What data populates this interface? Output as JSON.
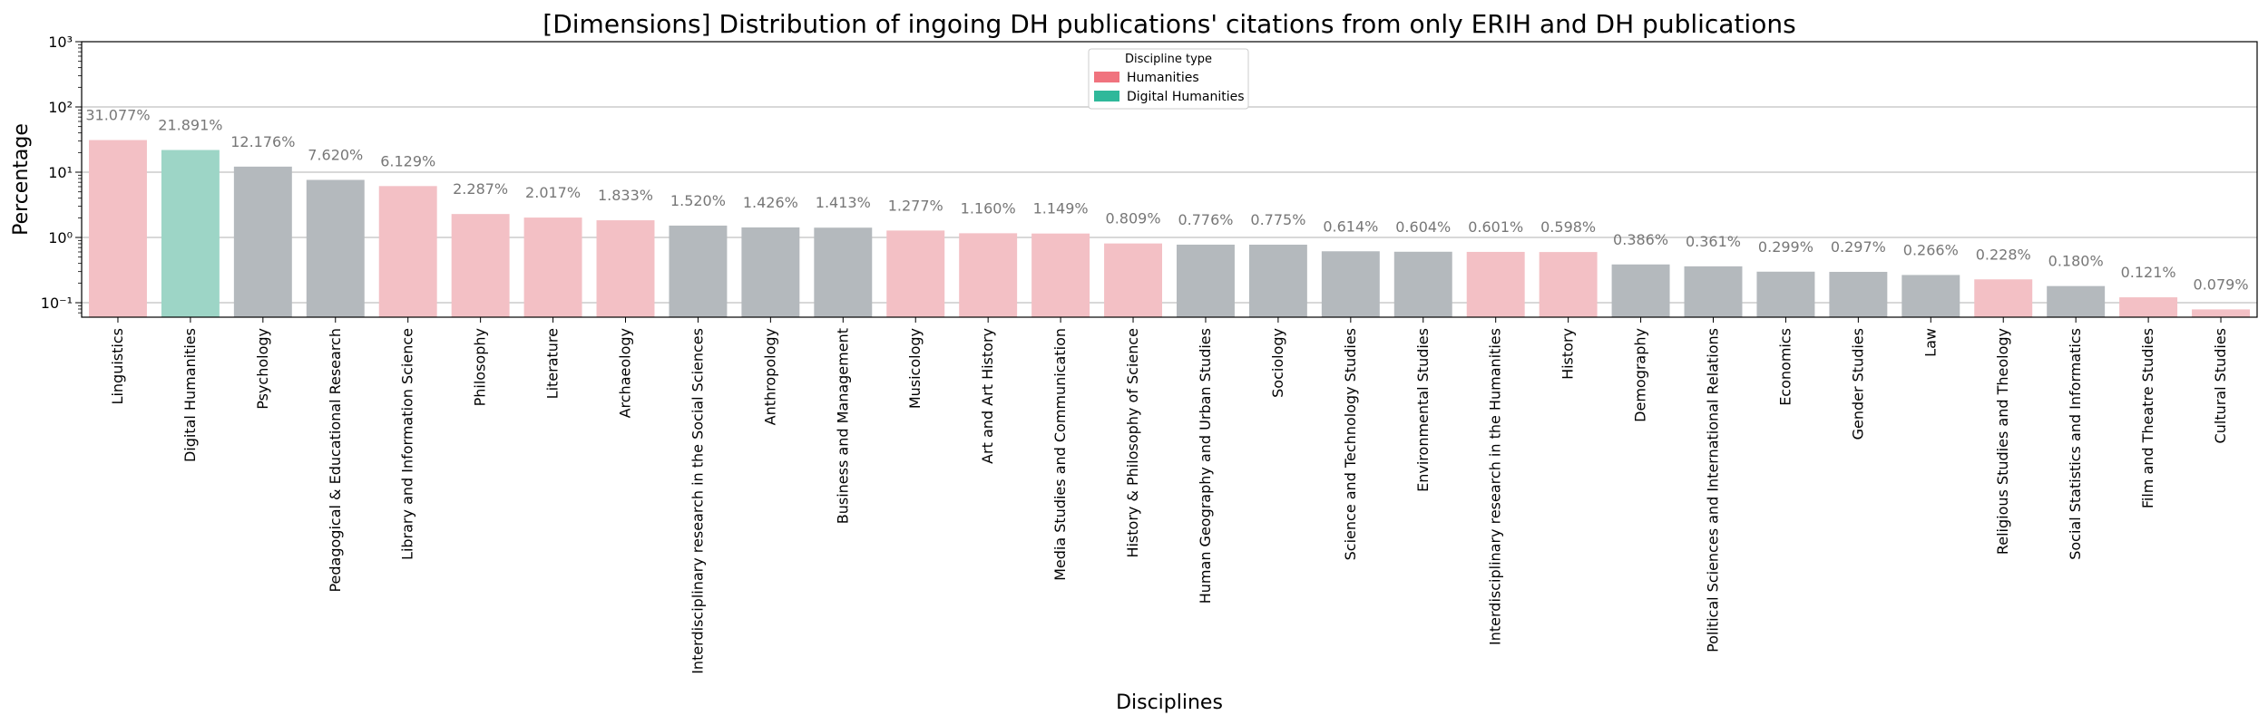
{
  "chart_data": {
    "type": "bar",
    "title": "[Dimensions] Distribution of ingoing DH publications' citations from only ERIH and DH publications",
    "xlabel": "Disciplines",
    "ylabel": "Percentage",
    "yscale": "log",
    "ylim": [
      0.06,
      1000
    ],
    "yticks": [
      0.1,
      1,
      10,
      100,
      1000
    ],
    "ytick_labels": [
      "10⁻¹",
      "10⁰",
      "10¹",
      "10²",
      "10³"
    ],
    "grid": "horizontal",
    "legend": {
      "title": "Discipline type",
      "placement": "top-center",
      "entries": [
        {
          "label": "Humanities",
          "color": "#f0737e"
        },
        {
          "label": "Digital Humanities",
          "color": "#2fb89a"
        }
      ]
    },
    "colors": {
      "Humanities": "#f3c0c5",
      "Digital Humanities": "#9dd5c6",
      "Other": "#b4b9bd"
    },
    "categories": [
      "Linguistics",
      "Digital Humanities",
      "Psychology",
      "Pedagogical & Educational Research",
      "Library and Information Science",
      "Philosophy",
      "Literature",
      "Archaeology",
      "Interdisciplinary research in the Social Sciences",
      "Anthropology",
      "Business and Management",
      "Musicology",
      "Art and Art History",
      "Media Studies and Communication",
      "History & Philosophy of Science",
      "Human Geography and Urban Studies",
      "Sociology",
      "Science and Technology Studies",
      "Environmental Studies",
      "Interdisciplinary research in the Humanities",
      "History",
      "Demography",
      "Political Sciences and International Relations",
      "Economics",
      "Gender Studies",
      "Law",
      "Religious Studies and Theology",
      "Social Statistics and Informatics",
      "Film and Theatre Studies",
      "Cultural Studies"
    ],
    "values": [
      31.077,
      21.891,
      12.176,
      7.62,
      6.129,
      2.287,
      2.017,
      1.833,
      1.52,
      1.426,
      1.413,
      1.277,
      1.16,
      1.149,
      0.809,
      0.776,
      0.775,
      0.614,
      0.604,
      0.601,
      0.598,
      0.386,
      0.361,
      0.299,
      0.297,
      0.266,
      0.228,
      0.18,
      0.121,
      0.079
    ],
    "value_labels": [
      "31.077%",
      "21.891%",
      "12.176%",
      "7.620%",
      "6.129%",
      "2.287%",
      "2.017%",
      "1.833%",
      "1.520%",
      "1.426%",
      "1.413%",
      "1.277%",
      "1.160%",
      "1.149%",
      "0.809%",
      "0.776%",
      "0.775%",
      "0.614%",
      "0.604%",
      "0.601%",
      "0.598%",
      "0.386%",
      "0.361%",
      "0.299%",
      "0.297%",
      "0.266%",
      "0.228%",
      "0.180%",
      "0.121%",
      "0.079%"
    ],
    "groups": [
      "Humanities",
      "Digital Humanities",
      "Other",
      "Other",
      "Humanities",
      "Humanities",
      "Humanities",
      "Humanities",
      "Other",
      "Other",
      "Other",
      "Humanities",
      "Humanities",
      "Humanities",
      "Humanities",
      "Other",
      "Other",
      "Other",
      "Other",
      "Humanities",
      "Humanities",
      "Other",
      "Other",
      "Other",
      "Other",
      "Other",
      "Humanities",
      "Other",
      "Humanities",
      "Humanities"
    ]
  }
}
